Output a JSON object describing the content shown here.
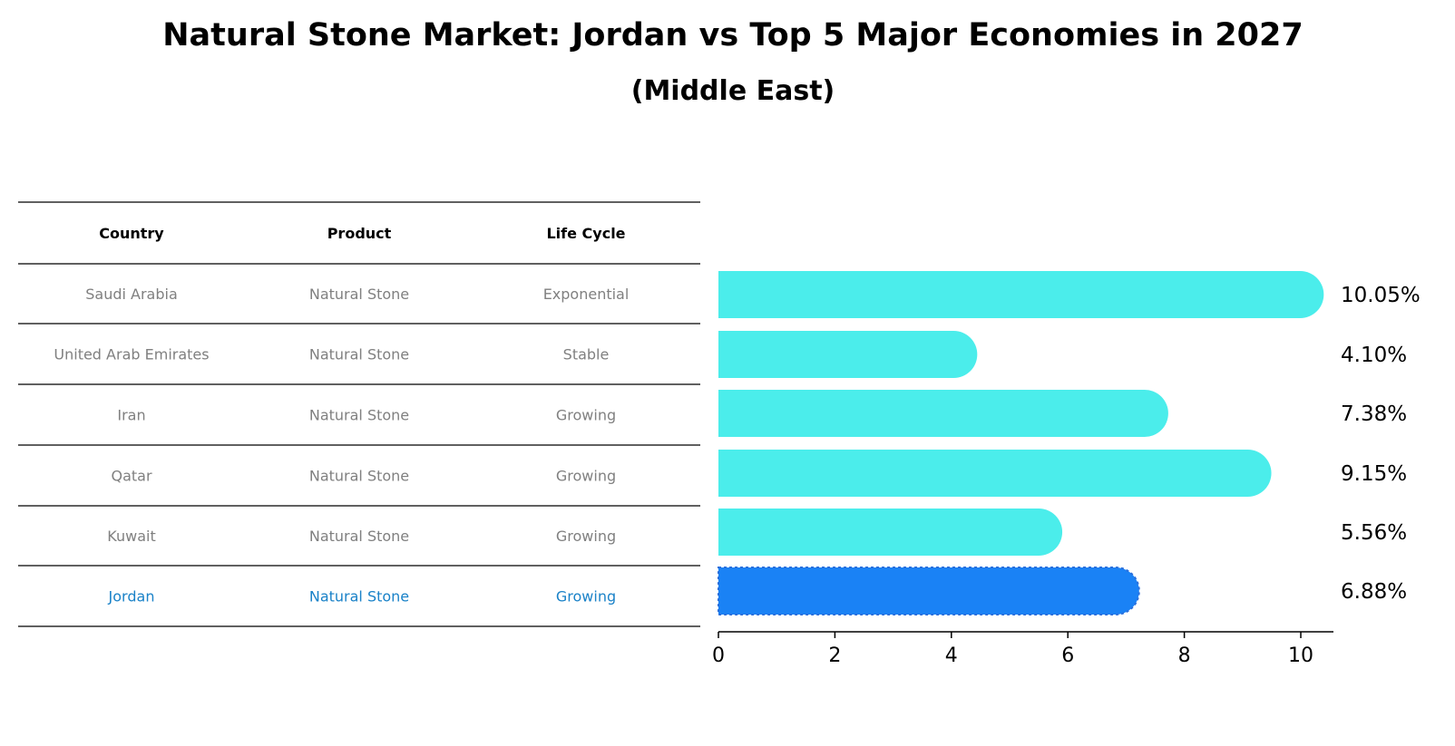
{
  "chart_data": {
    "type": "bar",
    "orientation": "horizontal",
    "title": "Natural Stone Market: Jordan vs Top 5 Major Economies in 2027",
    "subtitle": "(Middle East)",
    "categories": [
      "Saudi Arabia",
      "United Arab Emirates",
      "Iran",
      "Qatar",
      "Kuwait",
      "Jordan"
    ],
    "values": [
      10.05,
      4.1,
      7.38,
      9.15,
      5.56,
      6.88
    ],
    "value_labels": [
      "10.05%",
      "4.10%",
      "7.38%",
      "9.15%",
      "5.56%",
      "6.88%"
    ],
    "highlight": "Jordan",
    "xlim": [
      0,
      10.5
    ],
    "xticks": [
      "0",
      "2",
      "4",
      "6",
      "8",
      "10"
    ],
    "grid": false,
    "colors": {
      "bar": "#4bedeb",
      "highlight_bar": "#1a82f5",
      "table_text": "#808080",
      "highlight_text": "#1a82c8"
    },
    "table": {
      "headers": [
        "Country",
        "Product",
        "Life Cycle"
      ],
      "rows": [
        [
          "Saudi Arabia",
          "Natural Stone",
          "Exponential"
        ],
        [
          "United Arab Emirates",
          "Natural Stone",
          "Stable"
        ],
        [
          "Iran",
          "Natural Stone",
          "Growing"
        ],
        [
          "Qatar",
          "Natural Stone",
          "Growing"
        ],
        [
          "Kuwait",
          "Natural Stone",
          "Growing"
        ],
        [
          "Jordan",
          "Natural Stone",
          "Growing"
        ]
      ]
    }
  }
}
